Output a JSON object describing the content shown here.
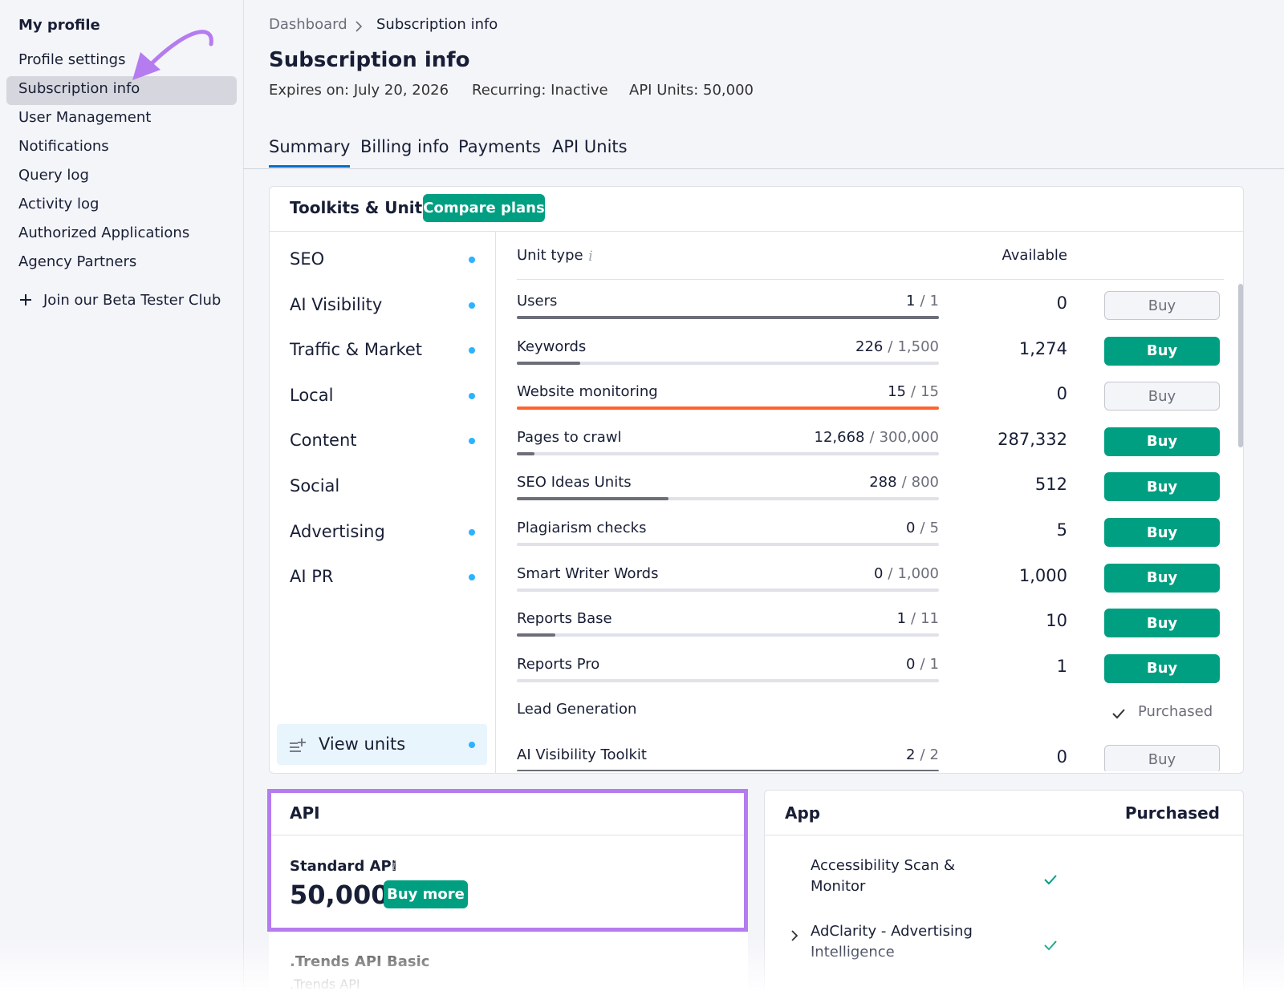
{
  "sidebar": {
    "title": "My profile",
    "items": [
      "Profile settings",
      "Subscription info",
      "User Management",
      "Notifications",
      "Query log",
      "Activity log",
      "Authorized Applications",
      "Agency Partners"
    ],
    "active": 1,
    "beta": "Join our Beta Tester Club"
  },
  "header": {
    "breadcrumb": [
      "Dashboard",
      "Subscription info"
    ],
    "title": "Subscription info",
    "meta": [
      "Expires on: July 20, 2026",
      "Recurring: Inactive",
      "API Units: 50,000"
    ],
    "tabs": [
      "Summary",
      "Billing info",
      "Payments",
      "API Units"
    ],
    "active_tab": 0
  },
  "toolkits": {
    "title": "Toolkits & Units",
    "compare": "Compare plans",
    "list": [
      {
        "label": "SEO",
        "dot": true
      },
      {
        "label": "AI Visibility",
        "dot": true
      },
      {
        "label": "Traffic & Market",
        "dot": true
      },
      {
        "label": "Local",
        "dot": true
      },
      {
        "label": "Content",
        "dot": true
      },
      {
        "label": "Social",
        "dot": false
      },
      {
        "label": "Advertising",
        "dot": true
      },
      {
        "label": "AI PR",
        "dot": true
      }
    ],
    "view_units": "View units",
    "columns": [
      "Unit type",
      "Available"
    ],
    "separator": "/",
    "rows": [
      {
        "name": "Users",
        "used": "1",
        "total": "1",
        "available": "0",
        "button": "Buy",
        "enabled": false,
        "bar_color": "#6c6e79"
      },
      {
        "name": "Keywords",
        "used": "226",
        "total": "1,500",
        "available": "1,274",
        "button": "Buy",
        "enabled": true,
        "bar_color": "#6c6e79"
      },
      {
        "name": "Website monitoring",
        "used": "15",
        "total": "15",
        "available": "0",
        "button": "Buy",
        "enabled": false,
        "bar_color": "#ff642d"
      },
      {
        "name": "Pages to crawl",
        "used": "12,668",
        "total": "300,000",
        "available": "287,332",
        "button": "Buy",
        "enabled": true,
        "bar_color": "#6c6e79"
      },
      {
        "name": "SEO Ideas Units",
        "used": "288",
        "total": "800",
        "available": "512",
        "button": "Buy",
        "enabled": true,
        "bar_color": "#6c6e79"
      },
      {
        "name": "Plagiarism checks",
        "used": "0",
        "total": "5",
        "available": "5",
        "button": "Buy",
        "enabled": true,
        "bar_color": "#6c6e79"
      },
      {
        "name": "Smart Writer Words",
        "used": "0",
        "total": "1,000",
        "available": "1,000",
        "button": "Buy",
        "enabled": true,
        "bar_color": "#6c6e79"
      },
      {
        "name": "Reports Base",
        "used": "1",
        "total": "11",
        "available": "10",
        "button": "Buy",
        "enabled": true,
        "bar_color": "#6c6e79"
      },
      {
        "name": "Reports Pro",
        "used": "0",
        "total": "1",
        "available": "1",
        "button": "Buy",
        "enabled": true,
        "bar_color": "#6c6e79"
      },
      {
        "name": "Lead Generation",
        "status": "Purchased"
      },
      {
        "name": "AI Visibility Toolkit",
        "used": "2",
        "total": "2",
        "available": "0",
        "button": "Buy",
        "enabled": false,
        "bar_color": "#6c6e79"
      }
    ]
  },
  "api": {
    "title": "API",
    "item": "Standard API",
    "value": "50,000",
    "button": "Buy more",
    "next_item": ".Trends API Basic",
    "next_sub": ".Trends API"
  },
  "app": {
    "title": "App",
    "status": "Purchased",
    "items": [
      {
        "label": "Accessibility Scan & Monitor",
        "expandable": false
      },
      {
        "label": "AdClarity - Advertising Intelligence",
        "expandable": true
      }
    ]
  }
}
